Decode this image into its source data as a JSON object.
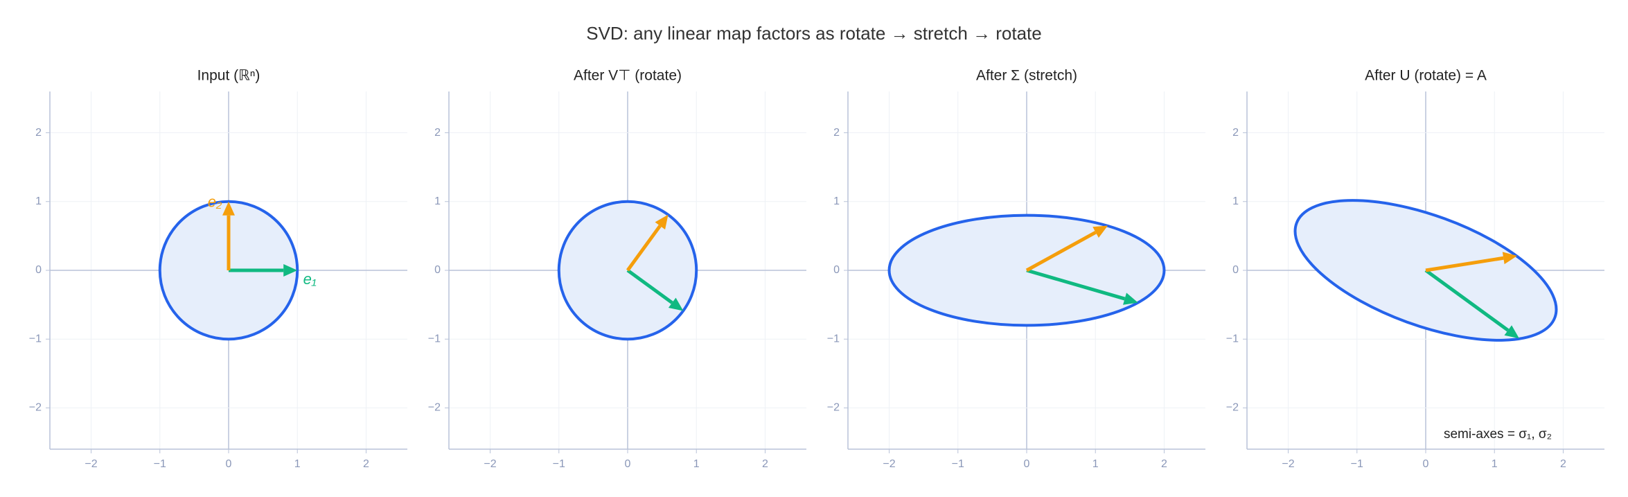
{
  "title": "SVD: any linear map factors as  rotate  →  stretch  →  rotate",
  "chart_data": [
    {
      "type": "vector",
      "title": "Input  (ℝⁿ)",
      "xlim": [
        -2.6,
        2.6
      ],
      "ylim": [
        -2.6,
        2.6
      ],
      "xticks": [
        {
          "value": -2,
          "label": "−2"
        },
        {
          "value": -1,
          "label": "−1"
        },
        0,
        1,
        2
      ],
      "yticks": [
        {
          "value": -2,
          "label": "−2"
        },
        {
          "value": -1,
          "label": "−1"
        },
        0,
        1,
        2
      ],
      "grid": true,
      "ellipse": {
        "semi_axes": [
          1,
          1
        ],
        "angle": 0,
        "color": "#2563eb"
      },
      "arrows": [
        {
          "label": "e₁",
          "color": "#10b981",
          "x": 1,
          "y": 0
        },
        {
          "label": "e₂",
          "color": "#f59e0b",
          "x": 0,
          "y": 1
        }
      ]
    },
    {
      "type": "vector",
      "title": "After V⊤  (rotate)",
      "xlim": [
        -2.6,
        2.6
      ],
      "ylim": [
        -2.6,
        2.6
      ],
      "xticks": [
        {
          "value": -2,
          "label": "−2"
        },
        {
          "value": -1,
          "label": "−1"
        },
        0,
        1,
        2
      ],
      "yticks": [
        {
          "value": -2,
          "label": "−2"
        },
        {
          "value": -1,
          "label": "−1"
        },
        0,
        1,
        2
      ],
      "grid": true,
      "ellipse": {
        "semi_axes": [
          1,
          1
        ],
        "angle": 0,
        "color": "#2563eb"
      },
      "arrows": [
        {
          "color": "#10b981",
          "x": 0.81,
          "y": -0.59
        },
        {
          "color": "#f59e0b",
          "x": 0.59,
          "y": 0.81
        }
      ]
    },
    {
      "type": "vector",
      "title": "After Σ  (stretch)",
      "xlim": [
        -2.6,
        2.6
      ],
      "ylim": [
        -2.6,
        2.6
      ],
      "xticks": [
        {
          "value": -2,
          "label": "−2"
        },
        {
          "value": -1,
          "label": "−1"
        },
        0,
        1,
        2
      ],
      "yticks": [
        {
          "value": -2,
          "label": "−2"
        },
        {
          "value": -1,
          "label": "−1"
        },
        0,
        1,
        2
      ],
      "grid": true,
      "ellipse": {
        "semi_axes": [
          2,
          0.8
        ],
        "angle": 0,
        "color": "#2563eb"
      },
      "arrows": [
        {
          "color": "#10b981",
          "x": 1.62,
          "y": -0.47
        },
        {
          "color": "#f59e0b",
          "x": 1.18,
          "y": 0.65
        }
      ]
    },
    {
      "type": "vector",
      "title": "After U  (rotate)  = A",
      "xlim": [
        -2.6,
        2.6
      ],
      "ylim": [
        -2.6,
        2.6
      ],
      "xticks": [
        {
          "value": -2,
          "label": "−2"
        },
        {
          "value": -1,
          "label": "−1"
        },
        0,
        1,
        2
      ],
      "yticks": [
        {
          "value": -2,
          "label": "−2"
        },
        {
          "value": -1,
          "label": "−1"
        },
        0,
        1,
        2
      ],
      "grid": true,
      "ellipse": {
        "semi_axes": [
          2,
          0.8
        ],
        "angle": -20,
        "color": "#2563eb"
      },
      "arrows": [
        {
          "color": "#10b981",
          "x": 1.36,
          "y": -0.99
        },
        {
          "color": "#f59e0b",
          "x": 1.33,
          "y": 0.21
        }
      ],
      "annotation": "semi-axes = σ₁, σ₂"
    }
  ]
}
